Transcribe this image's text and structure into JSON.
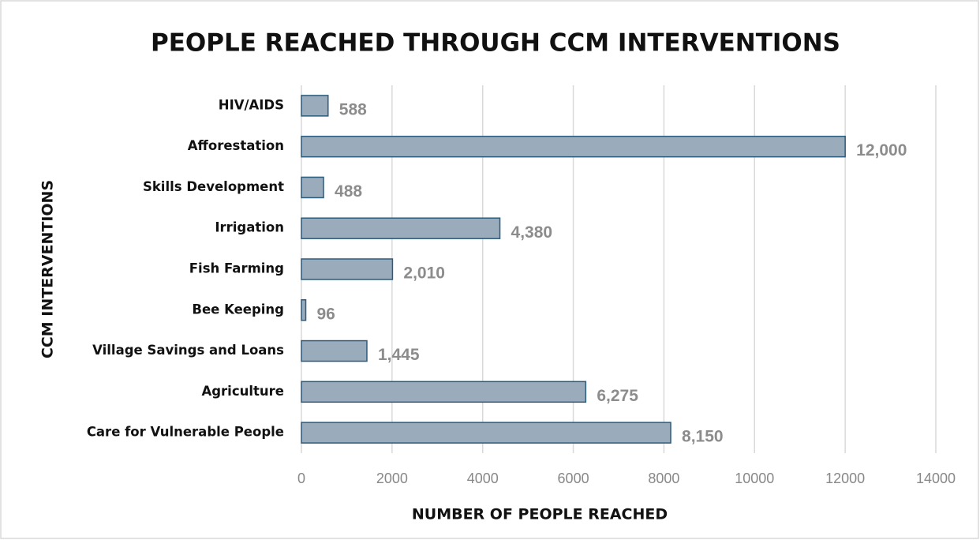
{
  "chart_data": {
    "type": "bar",
    "orientation": "horizontal",
    "title": "PEOPLE REACHED THROUGH CCM INTERVENTIONS",
    "xlabel": "NUMBER OF PEOPLE REACHED",
    "ylabel": "CCM INTERVENTIONS",
    "categories": [
      "HIV/AIDS",
      "Afforestation",
      "Skills Development",
      "Irrigation",
      "Fish Farming",
      "Bee Keeping",
      "Village Savings and Loans",
      "Agriculture",
      "Care for Vulnerable People"
    ],
    "values": [
      588,
      12000,
      488,
      4380,
      2010,
      96,
      1445,
      6275,
      8150
    ],
    "value_labels": [
      "588",
      "12,000",
      "488",
      "4,380",
      "2,010",
      "96",
      "1,445",
      "6,275",
      "8,150"
    ],
    "color": "#9aabbb",
    "edgecolor": "#2c5c7c",
    "xlim": [
      0,
      14000
    ],
    "xticks": [
      0,
      2000,
      4000,
      6000,
      8000,
      10000,
      12000,
      14000
    ],
    "grid": true
  }
}
